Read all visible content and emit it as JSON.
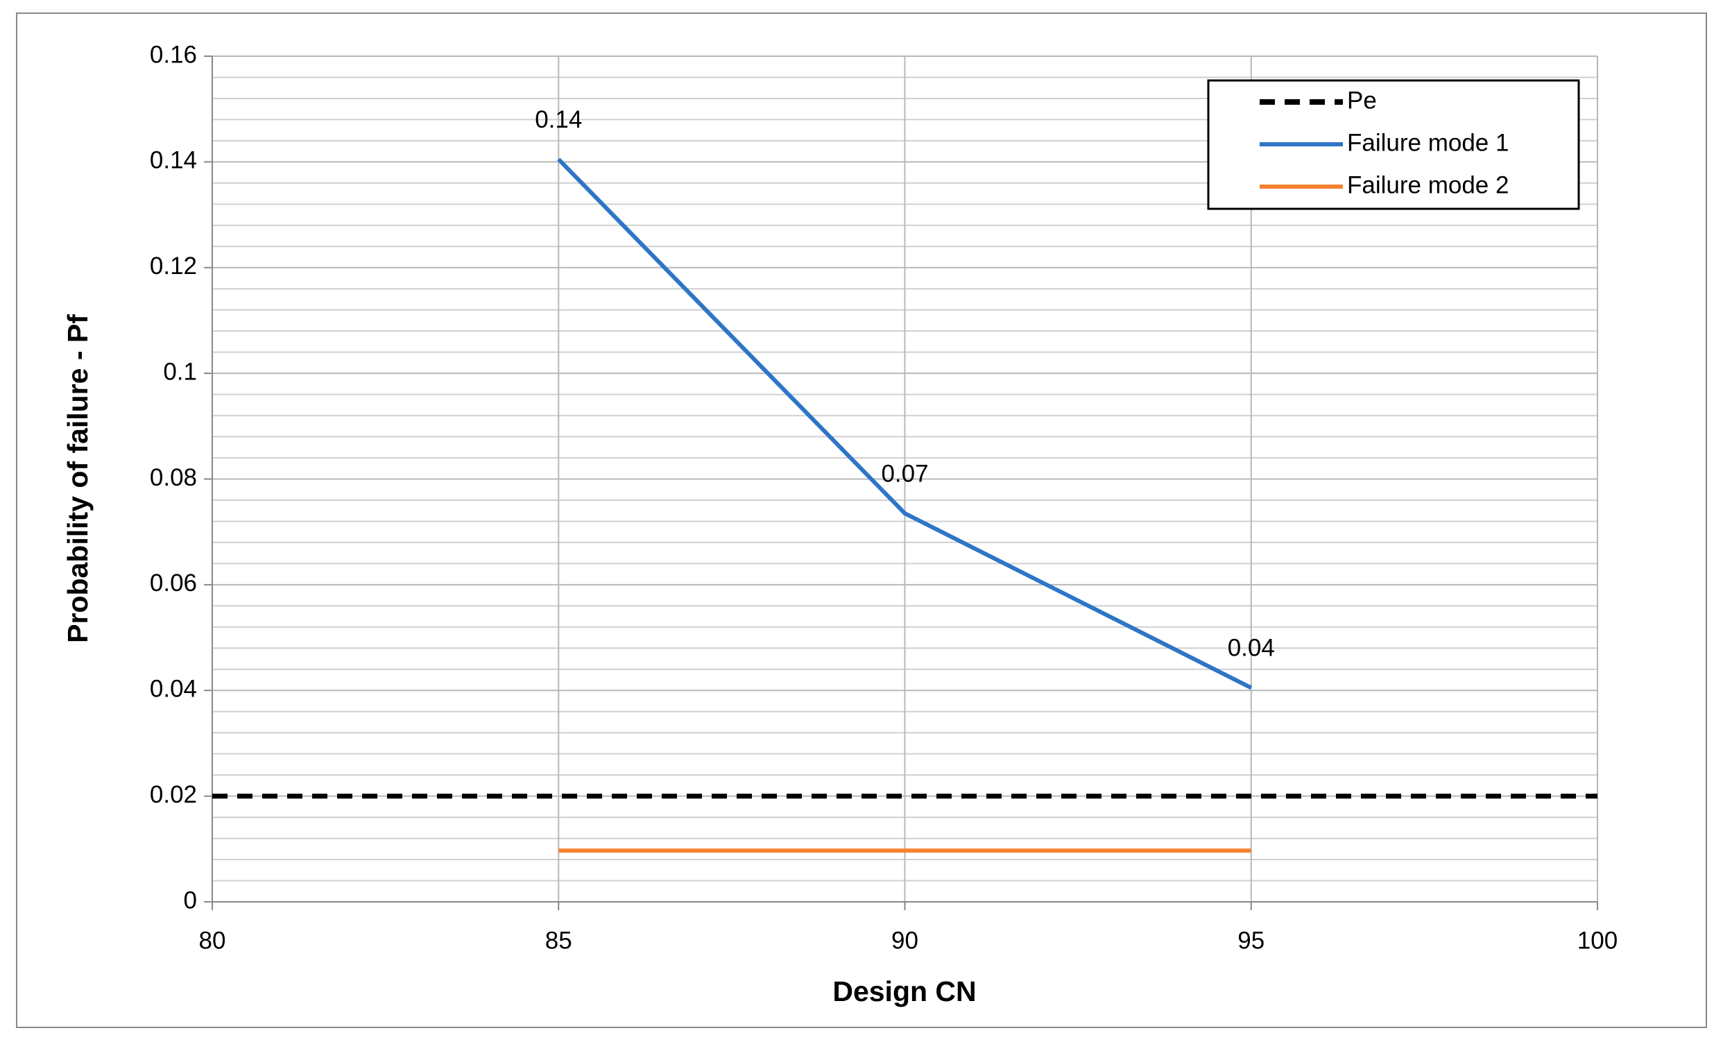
{
  "chart_data": {
    "type": "line",
    "x_label": "Design CN",
    "y_label": "Probability of failure - Pf",
    "xlim": [
      80,
      100
    ],
    "xticks": [
      80,
      85,
      90,
      95,
      100
    ],
    "ylim": [
      0,
      0.16
    ],
    "yticks": [
      0,
      0.02,
      0.04,
      0.06,
      0.08,
      0.1,
      0.12,
      0.14,
      0.16
    ],
    "grid": true,
    "minor_grid_divisions": 5,
    "legend_position": "upper right",
    "series": [
      {
        "name": "Pe",
        "color": "#000000",
        "line_style": "dashed",
        "x": [
          80,
          100
        ],
        "values": [
          0.02,
          0.02
        ]
      },
      {
        "name": "Failure mode 1",
        "color": "#2e75c6",
        "line_style": "solid",
        "x": [
          85,
          90,
          95
        ],
        "values": [
          0.1405,
          0.0735,
          0.0405
        ],
        "value_labels": [
          "0.14",
          "0.07",
          "0.04"
        ]
      },
      {
        "name": "Failure mode 2",
        "color": "#f58232",
        "line_style": "solid",
        "x": [
          85,
          95
        ],
        "values": [
          0.0097,
          0.0097
        ]
      }
    ]
  }
}
